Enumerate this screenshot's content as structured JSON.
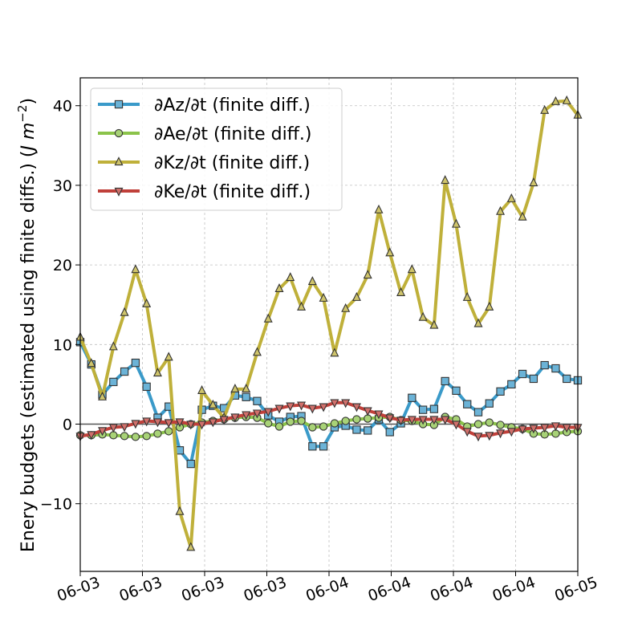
{
  "chart_data": {
    "type": "line",
    "title": "",
    "xlabel": "",
    "ylabel": "Enery budgets (estimated using finite diffs.) (J m⁻²)",
    "ylabel_main": "Enery budgets (estimated using finite diffs.) (",
    "ylabel_unit": "J m",
    "ylabel_exp": "−2",
    "ylabel_close": ")",
    "xlim": [
      0,
      45
    ],
    "ylim": [
      -18.5,
      43.5
    ],
    "x_ticks": [
      0,
      5.625,
      11.25,
      16.875,
      22.5,
      28.125,
      33.75,
      39.375,
      45
    ],
    "x_tick_labels": [
      "06-03",
      "06-03",
      "06-03",
      "06-03",
      "06-04",
      "06-04",
      "06-04",
      "06-04",
      "06-05"
    ],
    "y_ticks": [
      -10,
      0,
      10,
      20,
      30,
      40
    ],
    "y_tick_labels": [
      "−10",
      "0",
      "10",
      "20",
      "30",
      "40"
    ],
    "grid": true,
    "legend_position": "top-left",
    "series": [
      {
        "name": "∂Az/∂t (finite diff.)",
        "color": "#3a9ac9",
        "marker": "square",
        "values": [
          10.3,
          7.5,
          3.7,
          5.3,
          6.6,
          7.7,
          4.7,
          0.8,
          2.2,
          -3.3,
          -5.0,
          1.8,
          2.3,
          2.0,
          3.6,
          3.4,
          2.9,
          1.1,
          0.3,
          0.9,
          1.0,
          -2.8,
          -2.8,
          -0.4,
          -0.2,
          -0.7,
          -0.8,
          0.6,
          -1.0,
          0.1,
          3.3,
          1.8,
          1.9,
          5.4,
          4.2,
          2.5,
          1.5,
          2.6,
          4.1,
          5.0,
          6.3,
          5.7,
          7.4,
          7.0,
          5.7,
          5.5
        ]
      },
      {
        "name": "∂Ae/∂t (finite diff.)",
        "color": "#8bc34a",
        "marker": "circle",
        "values": [
          -1.4,
          -1.4,
          -1.3,
          -1.4,
          -1.5,
          -1.6,
          -1.5,
          -1.2,
          -0.9,
          -0.4,
          0.0,
          0.2,
          0.4,
          0.6,
          0.8,
          0.9,
          0.8,
          0.1,
          -0.3,
          0.3,
          0.4,
          -0.4,
          -0.3,
          0.1,
          0.4,
          0.6,
          0.7,
          0.8,
          0.9,
          0.5,
          0.4,
          0.0,
          -0.1,
          0.9,
          0.6,
          -0.3,
          0.0,
          0.2,
          -0.1,
          -0.4,
          -0.6,
          -1.2,
          -1.3,
          -1.2,
          -1.0,
          -0.9
        ]
      },
      {
        "name": "∂Kz/∂t (finite diff.)",
        "color": "#bfb03a",
        "marker": "triangle-up",
        "values": [
          10.9,
          7.6,
          3.4,
          9.7,
          14.0,
          19.4,
          15.1,
          6.4,
          8.4,
          -11.0,
          -15.5,
          4.2,
          2.4,
          0.8,
          4.4,
          4.4,
          9.0,
          13.2,
          17.0,
          18.4,
          14.7,
          17.9,
          15.8,
          8.9,
          14.5,
          15.9,
          18.7,
          26.9,
          21.5,
          16.5,
          19.4,
          13.4,
          12.4,
          30.6,
          25.1,
          15.9,
          12.6,
          14.7,
          26.7,
          28.3,
          26.0,
          30.3,
          39.4,
          40.5,
          40.6,
          38.8
        ]
      },
      {
        "name": "∂Ke/∂t (finite diff.)",
        "color": "#c0403a",
        "marker": "triangle-down",
        "values": [
          -1.5,
          -1.3,
          -0.8,
          -0.4,
          -0.3,
          0.1,
          0.4,
          0.3,
          0.2,
          0.3,
          0.0,
          0.0,
          0.3,
          0.6,
          0.9,
          1.2,
          1.4,
          1.6,
          2.0,
          2.3,
          2.4,
          2.0,
          2.2,
          2.7,
          2.7,
          2.2,
          1.7,
          1.3,
          0.8,
          0.5,
          0.6,
          0.6,
          0.6,
          0.6,
          0.0,
          -0.9,
          -1.5,
          -1.4,
          -1.1,
          -0.9,
          -0.6,
          -0.5,
          -0.4,
          -0.2,
          -0.4,
          -0.4
        ]
      }
    ]
  }
}
